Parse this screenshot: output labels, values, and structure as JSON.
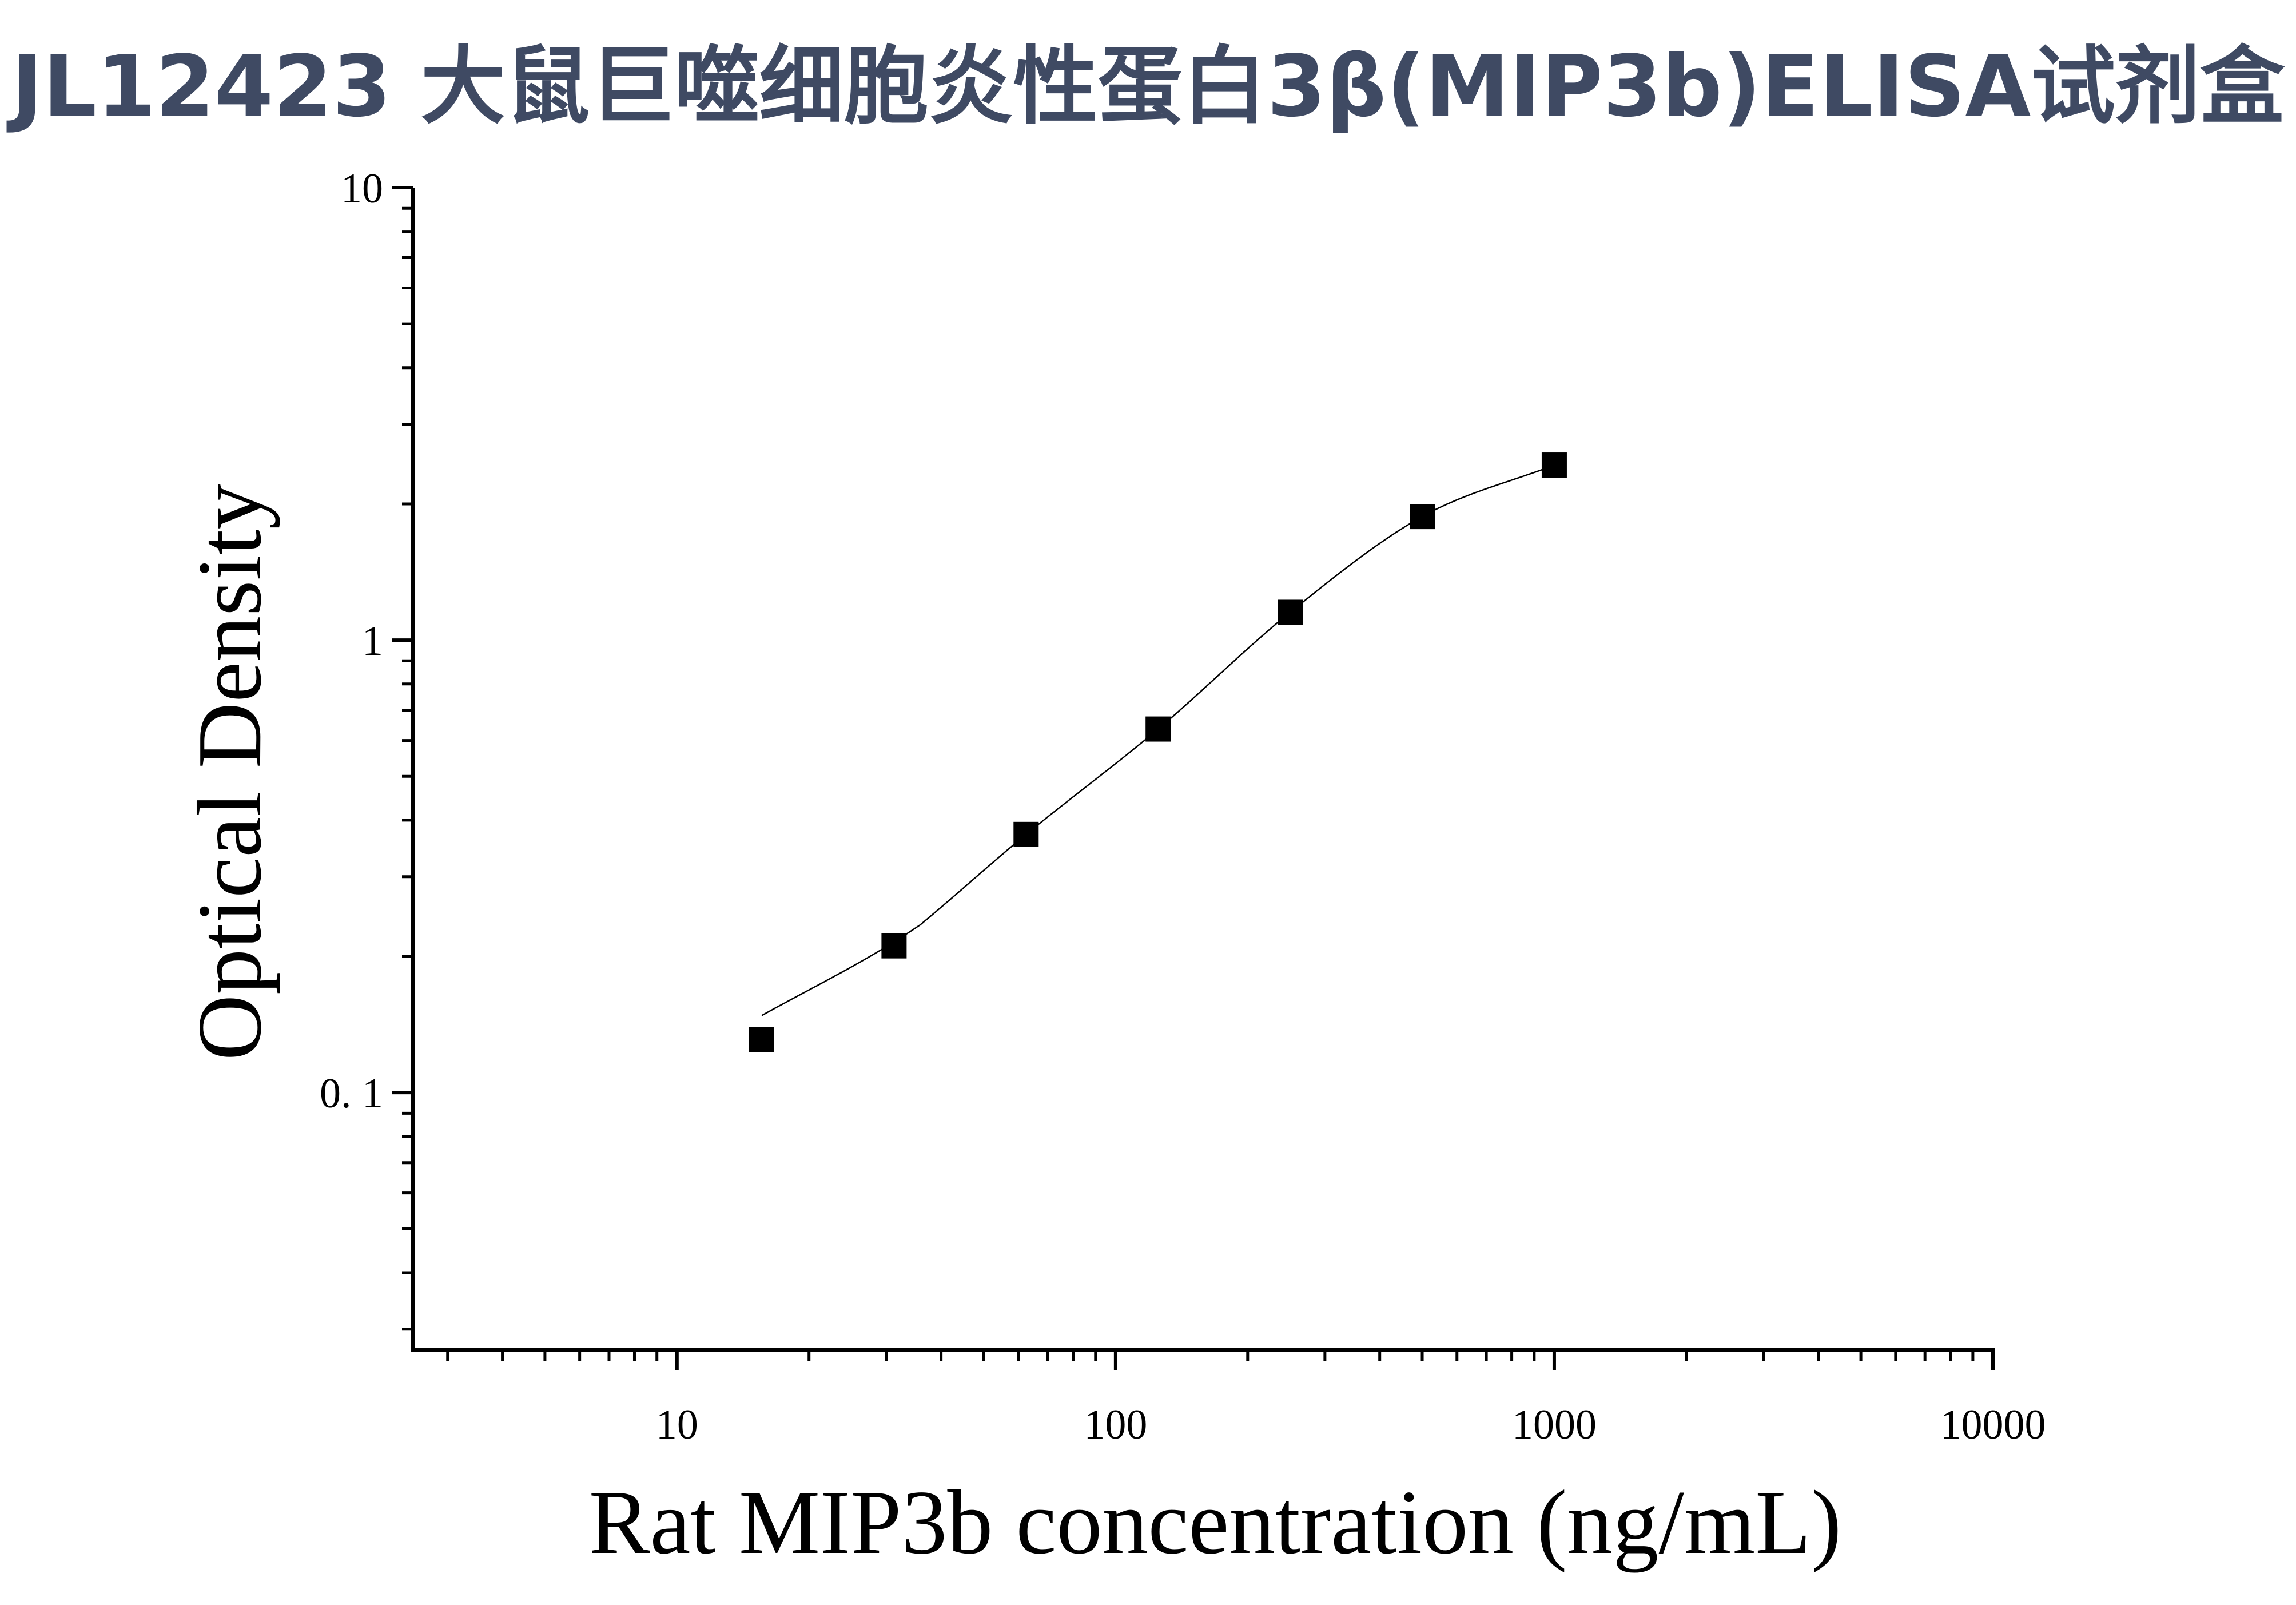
{
  "title": "JL12423 大鼠巨噬细胞炎性蛋白3β(MIP3b)ELISA试剂盒",
  "chart_data": {
    "type": "scatter",
    "xlabel": "Rat MIP3b concentration (ng/mL)",
    "ylabel": "Optical Density",
    "xscale": "log",
    "yscale": "log",
    "xlim": [
      2.5,
      10000
    ],
    "ylim": [
      0.027,
      10
    ],
    "x_ticks": [
      {
        "value": 10,
        "label": "10"
      },
      {
        "value": 100,
        "label": "100"
      },
      {
        "value": 1000,
        "label": "1000"
      },
      {
        "value": 10000,
        "label": "10000"
      }
    ],
    "y_ticks": [
      {
        "value": 0.1,
        "label": "0. 1"
      },
      {
        "value": 1,
        "label": "1"
      },
      {
        "value": 10,
        "label": "10"
      }
    ],
    "grid": false,
    "series": [
      {
        "marker": "square",
        "x": [
          15.6,
          31.25,
          62.5,
          125,
          250,
          500,
          1000
        ],
        "y": [
          0.131,
          0.211,
          0.372,
          0.636,
          1.152,
          1.875,
          2.437
        ]
      }
    ],
    "fit_curve": {
      "type": "4PL",
      "x_range": [
        15.6,
        1000
      ]
    },
    "colors": {
      "marker": "#000000",
      "curve": "#000000",
      "axis": "#000000",
      "title": "#3f4a63"
    }
  }
}
